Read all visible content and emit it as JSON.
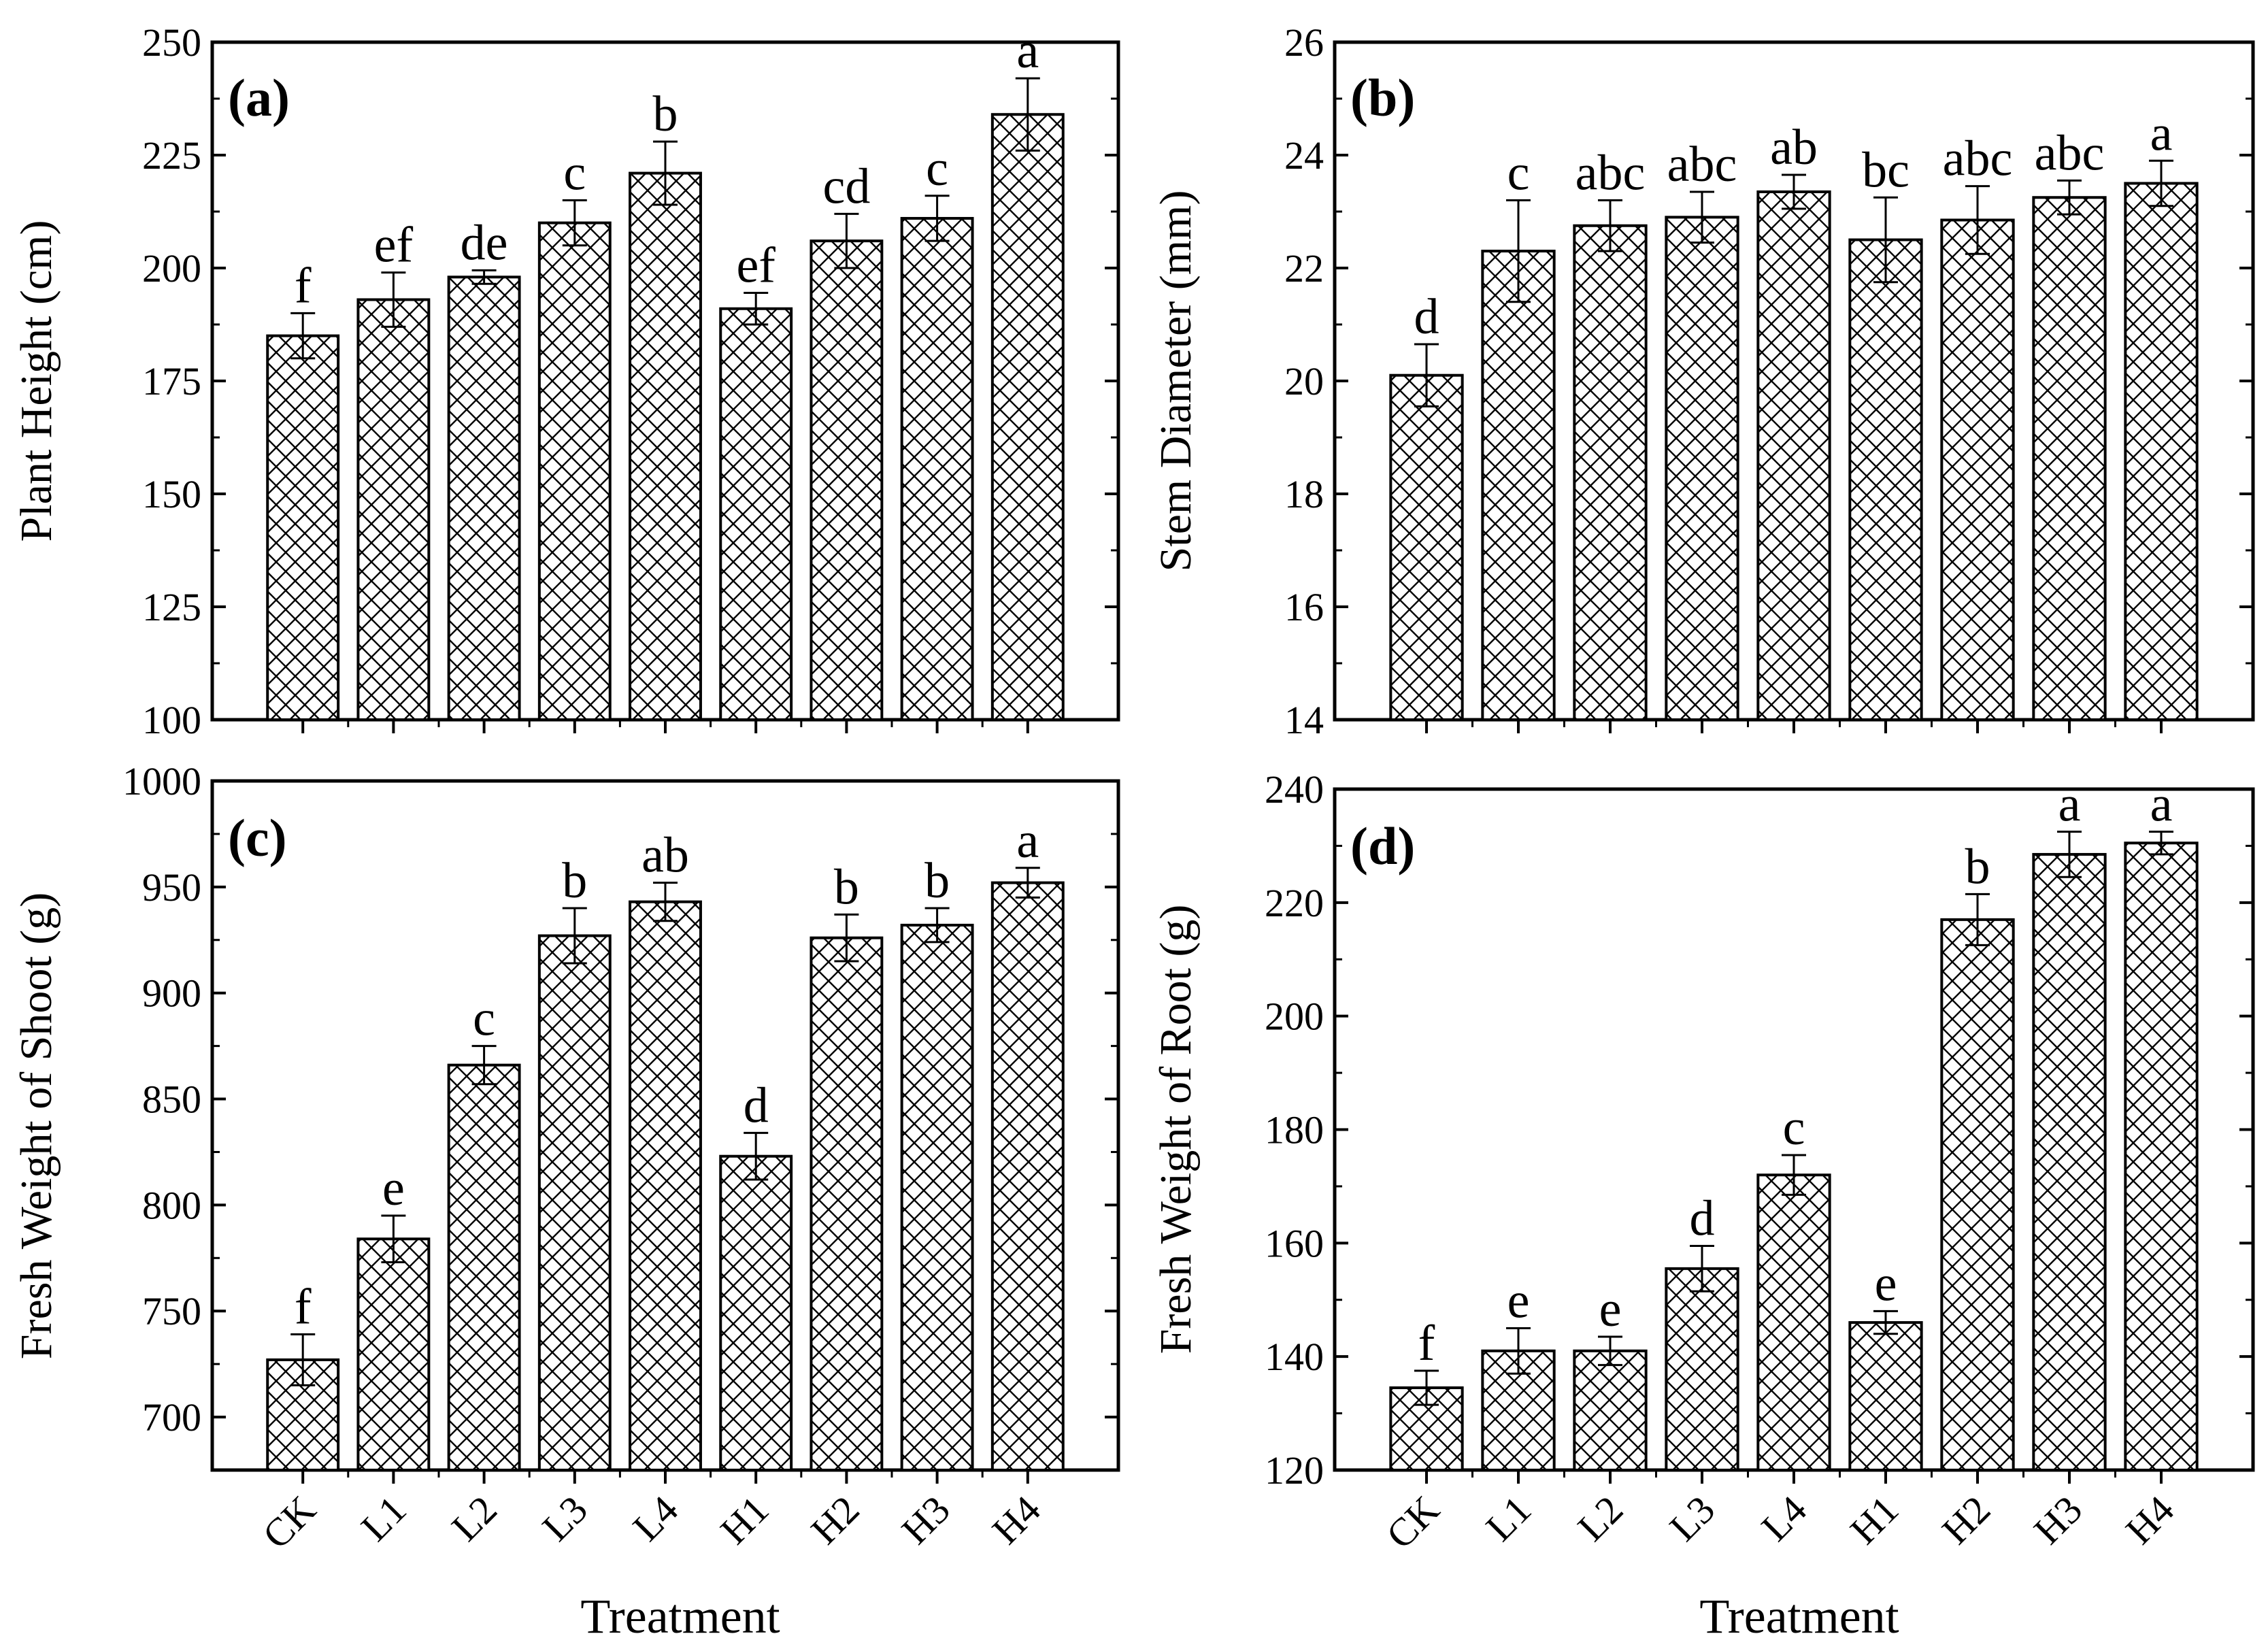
{
  "chart_data": [
    {
      "type": "bar",
      "panel_label": "(a)",
      "ylabel": "Plant Height (cm)",
      "xlabel": "",
      "categories": [
        "CK",
        "L1",
        "L2",
        "L3",
        "L4",
        "H1",
        "H2",
        "H3",
        "H4"
      ],
      "values": [
        185,
        193,
        198,
        210,
        221,
        191,
        206,
        211,
        234
      ],
      "errors": [
        5,
        6,
        1.5,
        5,
        7,
        3.5,
        6,
        5,
        8
      ],
      "significance": [
        "f",
        "ef",
        "de",
        "c",
        "b",
        "ef",
        "cd",
        "c",
        "a"
      ],
      "ylim": [
        100,
        250
      ],
      "yticks": [
        "100",
        "125",
        "150",
        "175",
        "200",
        "225",
        "250"
      ],
      "show_xticklabels": false
    },
    {
      "type": "bar",
      "panel_label": "(b)",
      "ylabel": "Stem Diameter (mm)",
      "xlabel": "",
      "categories": [
        "CK",
        "L1",
        "L2",
        "L3",
        "L4",
        "H1",
        "H2",
        "H3",
        "H4"
      ],
      "values": [
        20.1,
        22.3,
        22.75,
        22.9,
        23.35,
        22.5,
        22.85,
        23.25,
        23.5
      ],
      "errors": [
        0.55,
        0.9,
        0.45,
        0.45,
        0.3,
        0.75,
        0.6,
        0.3,
        0.4
      ],
      "significance": [
        "d",
        "c",
        "abc",
        "abc",
        "ab",
        "bc",
        "abc",
        "abc",
        "a"
      ],
      "ylim": [
        14,
        26
      ],
      "yticks": [
        "14",
        "16",
        "18",
        "20",
        "22",
        "24",
        "26"
      ],
      "show_xticklabels": false
    },
    {
      "type": "bar",
      "panel_label": "(c)",
      "ylabel": "Fresh Weight of Shoot (g)",
      "xlabel": "Treatment",
      "categories": [
        "CK",
        "L1",
        "L2",
        "L3",
        "L4",
        "H1",
        "H2",
        "H3",
        "H4"
      ],
      "values": [
        727,
        784,
        866,
        927,
        943,
        823,
        926,
        932,
        952
      ],
      "errors": [
        12,
        11,
        9,
        13,
        9,
        11,
        11,
        8,
        7
      ],
      "significance": [
        "f",
        "e",
        "c",
        "b",
        "ab",
        "d",
        "b",
        "b",
        "a"
      ],
      "ylim": [
        675,
        1000
      ],
      "yticks": [
        "700",
        "750",
        "800",
        "850",
        "900",
        "950",
        "1000"
      ],
      "show_xticklabels": true
    },
    {
      "type": "bar",
      "panel_label": "(d)",
      "ylabel": "Fresh Weight of Root (g)",
      "xlabel": "Treatment",
      "categories": [
        "CK",
        "L1",
        "L2",
        "L3",
        "L4",
        "H1",
        "H2",
        "H3",
        "H4"
      ],
      "values": [
        134.5,
        141,
        141,
        155.5,
        172,
        146,
        217,
        228.5,
        230.5
      ],
      "errors": [
        3,
        4,
        2.5,
        4,
        3.5,
        2,
        4.5,
        4,
        2
      ],
      "significance": [
        "f",
        "e",
        "e",
        "d",
        "c",
        "e",
        "b",
        "a",
        "a"
      ],
      "ylim": [
        120,
        240
      ],
      "yticks": [
        "120",
        "140",
        "160",
        "180",
        "200",
        "220",
        "240"
      ],
      "show_xticklabels": true
    }
  ]
}
